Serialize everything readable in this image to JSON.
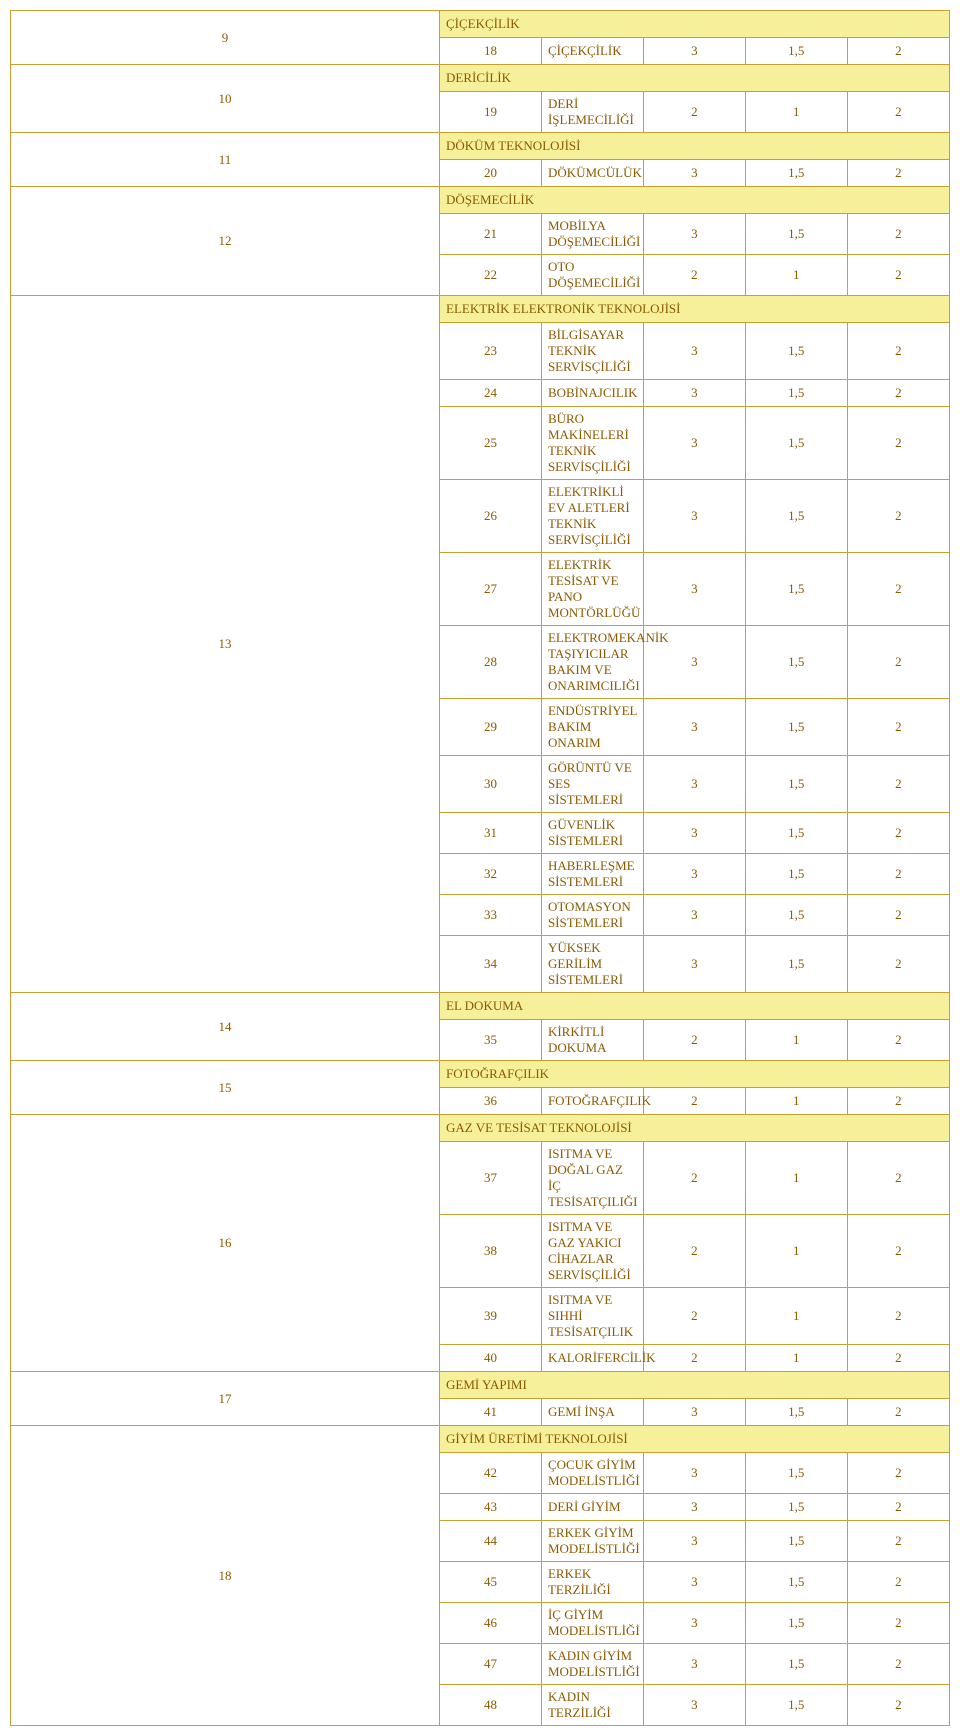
{
  "colors": {
    "border": "#c8a030",
    "text": "#8b5a00",
    "header_bg": "#f5f099",
    "row_bg": "#ffffff"
  },
  "sections": [
    {
      "idx": "9",
      "title": "ÇİÇEKÇİLİK",
      "rows": [
        {
          "n": "18",
          "name": "ÇİÇEKÇİLİK",
          "v1": "3",
          "v2": "1,5",
          "v3": "2"
        }
      ]
    },
    {
      "idx": "10",
      "title": "DERİCİLİK",
      "rows": [
        {
          "n": "19",
          "name": "DERİ İŞLEMECİLİĞİ",
          "v1": "2",
          "v2": "1",
          "v3": "2"
        }
      ]
    },
    {
      "idx": "11",
      "title": "DÖKÜM TEKNOLOJİSİ",
      "rows": [
        {
          "n": "20",
          "name": "DÖKÜMCÜLÜK",
          "v1": "3",
          "v2": "1,5",
          "v3": "2"
        }
      ]
    },
    {
      "idx": "12",
      "title": "DÖŞEMECİLİK",
      "rows": [
        {
          "n": "21",
          "name": "MOBİLYA DÖŞEMECİLİĞİ",
          "v1": "3",
          "v2": "1,5",
          "v3": "2"
        },
        {
          "n": "22",
          "name": "OTO DÖŞEMECİLİĞİ",
          "v1": "2",
          "v2": "1",
          "v3": "2"
        }
      ]
    },
    {
      "idx": "13",
      "title": "ELEKTRİK ELEKTRONİK TEKNOLOJİSİ",
      "rows": [
        {
          "n": "23",
          "name": "BİLGİSAYAR TEKNİK SERVİSÇİLİĞİ",
          "v1": "3",
          "v2": "1,5",
          "v3": "2"
        },
        {
          "n": "24",
          "name": "BOBİNAJCILIK",
          "v1": "3",
          "v2": "1,5",
          "v3": "2"
        },
        {
          "n": "25",
          "name": "BÜRO MAKİNELERİ TEKNİK SERVİSÇİLİĞİ",
          "v1": "3",
          "v2": "1,5",
          "v3": "2"
        },
        {
          "n": "26",
          "name": "ELEKTRİKLİ EV ALETLERİ TEKNİK SERVİSÇİLİĞİ",
          "v1": "3",
          "v2": "1,5",
          "v3": "2"
        },
        {
          "n": "27",
          "name": "ELEKTRİK TESİSAT VE PANO MONTÖRLÜĞÜ",
          "v1": "3",
          "v2": "1,5",
          "v3": "2"
        },
        {
          "n": "28",
          "name": "ELEKTROMEKANİK TAŞIYICILAR BAKIM VE ONARIMCILIĞI",
          "v1": "3",
          "v2": "1,5",
          "v3": "2"
        },
        {
          "n": "29",
          "name": "ENDÜSTRİYEL BAKIM ONARIM",
          "v1": "3",
          "v2": "1,5",
          "v3": "2"
        },
        {
          "n": "30",
          "name": "GÖRÜNTÜ VE SES SİSTEMLERİ",
          "v1": "3",
          "v2": "1,5",
          "v3": "2"
        },
        {
          "n": "31",
          "name": "GÜVENLİK SİSTEMLERİ",
          "v1": "3",
          "v2": "1,5",
          "v3": "2"
        },
        {
          "n": "32",
          "name": "HABERLEŞME SİSTEMLERİ",
          "v1": "3",
          "v2": "1,5",
          "v3": "2"
        },
        {
          "n": "33",
          "name": "OTOMASYON SİSTEMLERİ",
          "v1": "3",
          "v2": "1,5",
          "v3": "2"
        },
        {
          "n": "34",
          "name": "YÜKSEK GERİLİM SİSTEMLERİ",
          "v1": "3",
          "v2": "1,5",
          "v3": "2"
        }
      ]
    },
    {
      "idx": "14",
      "title": "EL DOKUMA",
      "rows": [
        {
          "n": "35",
          "name": "KİRKİTLİ DOKUMA",
          "v1": "2",
          "v2": "1",
          "v3": "2"
        }
      ]
    },
    {
      "idx": "15",
      "title": "FOTOĞRAFÇILIK",
      "rows": [
        {
          "n": "36",
          "name": "FOTOĞRAFÇILIK",
          "v1": "2",
          "v2": "1",
          "v3": "2"
        }
      ]
    },
    {
      "idx": "16",
      "title": "GAZ VE TESİSAT TEKNOLOJİSİ",
      "rows": [
        {
          "n": "37",
          "name": "ISITMA VE DOĞAL GAZ İÇ TESİSATÇILIĞI",
          "v1": "2",
          "v2": "1",
          "v3": "2"
        },
        {
          "n": "38",
          "name": "ISITMA VE GAZ YAKICI CİHAZLAR SERVİSÇİLİĞİ",
          "v1": "2",
          "v2": "1",
          "v3": "2"
        },
        {
          "n": "39",
          "name": "ISITMA VE SIHHİ TESİSATÇILIK",
          "v1": "2",
          "v2": "1",
          "v3": "2"
        },
        {
          "n": "40",
          "name": "KALORİFERCİLİK",
          "v1": "2",
          "v2": "1",
          "v3": "2"
        }
      ]
    },
    {
      "idx": "17",
      "title": "GEMİ YAPIMI",
      "rows": [
        {
          "n": "41",
          "name": "GEMİ İNŞA",
          "v1": "3",
          "v2": "1,5",
          "v3": "2"
        }
      ]
    },
    {
      "idx": "18",
      "title": "GİYİM ÜRETİMİ TEKNOLOJİSİ",
      "rows": [
        {
          "n": "42",
          "name": "ÇOCUK GİYİM MODELİSTLİĞİ",
          "v1": "3",
          "v2": "1,5",
          "v3": "2"
        },
        {
          "n": "43",
          "name": "DERİ GİYİM",
          "v1": "3",
          "v2": "1,5",
          "v3": "2"
        },
        {
          "n": "44",
          "name": "ERKEK GİYİM MODELİSTLİĞİ",
          "v1": "3",
          "v2": "1,5",
          "v3": "2"
        },
        {
          "n": "45",
          "name": "ERKEK TERZİLİĞİ",
          "v1": "3",
          "v2": "1,5",
          "v3": "2"
        },
        {
          "n": "46",
          "name": "İÇ GİYİM MODELİSTLİĞİ",
          "v1": "3",
          "v2": "1,5",
          "v3": "2"
        },
        {
          "n": "47",
          "name": "KADIN GİYİM MODELİSTLİĞİ",
          "v1": "3",
          "v2": "1,5",
          "v3": "2"
        },
        {
          "n": "48",
          "name": "KADIN TERZİLİĞİ",
          "v1": "3",
          "v2": "1,5",
          "v3": "2"
        }
      ]
    }
  ]
}
